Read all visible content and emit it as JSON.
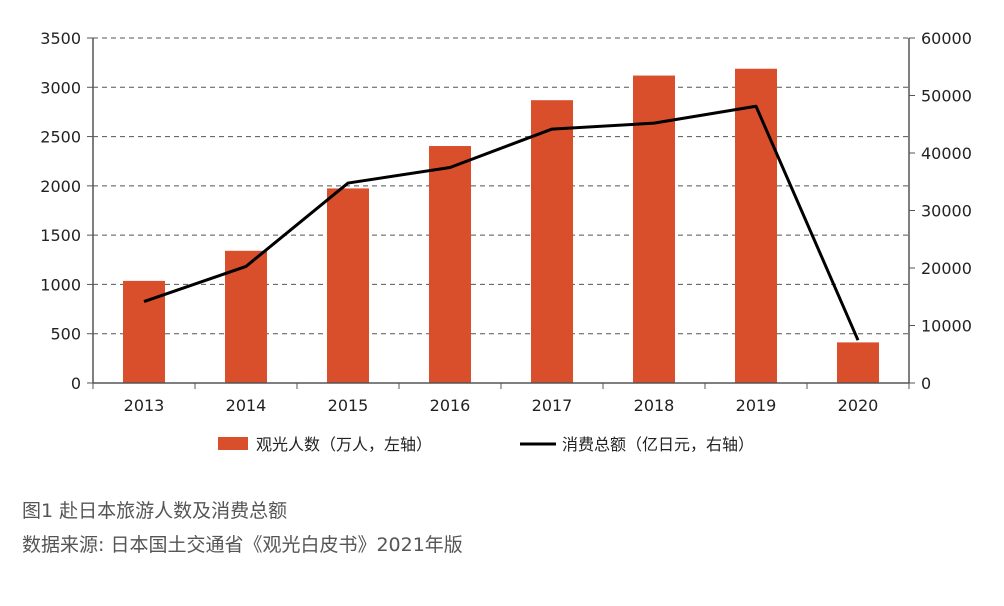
{
  "chart_data": {
    "type": "bar",
    "categories": [
      "2013",
      "2014",
      "2015",
      "2016",
      "2017",
      "2018",
      "2019",
      "2020"
    ],
    "series": [
      {
        "name": "观光人数（万人，左轴）",
        "type": "bar",
        "axis": "left",
        "color": "#d94e2b",
        "values": [
          1036,
          1341,
          1974,
          2404,
          2869,
          3119,
          3188,
          412
        ]
      },
      {
        "name": "消费总额（亿日元，右轴）",
        "type": "line",
        "axis": "right",
        "color": "#000000",
        "values": [
          14167,
          20278,
          34771,
          37476,
          44162,
          45189,
          48135,
          7446
        ]
      }
    ],
    "left_axis": {
      "min": 0,
      "max": 3500,
      "ticks": [
        "0",
        "500",
        "1000",
        "1500",
        "2000",
        "2500",
        "3000",
        "3500"
      ]
    },
    "right_axis": {
      "min": 0,
      "max": 60000,
      "ticks": [
        "0",
        "10000",
        "20000",
        "30000",
        "40000",
        "50000",
        "60000"
      ]
    },
    "grid": true,
    "grid_style": "dashed",
    "legend_position": "bottom"
  },
  "captions": {
    "figure_title": "图1  赴日本旅游人数及消费总额",
    "source": "数据来源: 日本国土交通省《观光白皮书》2021年版"
  }
}
